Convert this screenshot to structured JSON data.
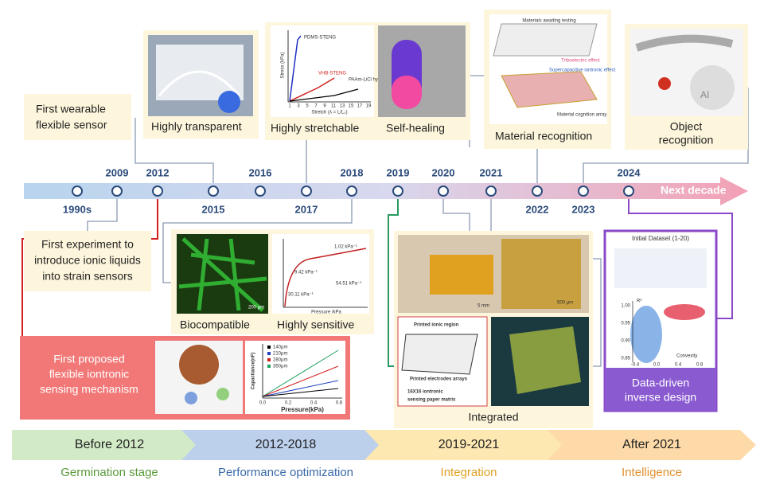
{
  "milestones": {
    "wearable": [
      "First wearable",
      "flexible sensor"
    ],
    "ionic": [
      "First experiment to",
      "introduce ionic liquids",
      "into strain sensors"
    ],
    "iontronic": [
      "First proposed",
      "flexible iontronic",
      "sensing mechanism"
    ],
    "transparent": "Highly transparent",
    "stretchable": "Highly stretchable",
    "self_healing": "Self-healing",
    "material": "Material recognition",
    "object": [
      "Object",
      "recognition"
    ],
    "biocompatible": "Biocompatible",
    "sensitive": "Highly sensitive",
    "integrated": "Integrated",
    "data_driven": [
      "Data-driven",
      "inverse design"
    ]
  },
  "timeline": {
    "years": [
      "1990s",
      "2009",
      "2012",
      "2015",
      "2016",
      "2017",
      "2018",
      "2019",
      "2020",
      "2021",
      "2022",
      "2023",
      "2024"
    ],
    "end_label": "Next decade"
  },
  "figure_texts": {
    "stretch": {
      "y_label": "Stress (kPa)",
      "x_label": "Stretch (λ = L/L₀)",
      "series": [
        "PDMS-STENG",
        "VHB-STENG",
        "PAAm-LiCl hydrogel"
      ],
      "xticks": [
        "1",
        "3",
        "5",
        "7",
        "9",
        "11",
        "13",
        "15",
        "17",
        "19"
      ]
    },
    "sensitive": {
      "slopes": [
        "1.02 kPa⁻¹",
        "9.42 kPa⁻¹",
        "30.11 kPa⁻¹",
        "54.51 kPa⁻¹"
      ],
      "x_label": "Pressure /kPa"
    },
    "capacitance": {
      "legend": [
        "140μm",
        "210μm",
        "280μm",
        "350μm"
      ],
      "y_label": "Capacitance(nF)",
      "x_label": "Pressure(kPa)",
      "xticks": [
        "0.0",
        "0.2",
        "0.4",
        "0.6"
      ]
    },
    "material": [
      "Materials awaiting testing",
      "Triboelectric effect",
      "Supercapacitive iontronic effect",
      "Material cognition array"
    ],
    "integrated": [
      "5 mm",
      "500 μm",
      "Printed ionic region",
      "Printed electrodes arrays",
      "16X16 iontronic",
      "sensing paper matrix"
    ],
    "dataset": {
      "title": "Initial Dataset (1-20)",
      "y_label": "R²",
      "x_label": "Convexity",
      "yticks": [
        "1.00",
        "0.95",
        "0.90",
        "0.85"
      ],
      "xticks": [
        "-0.4",
        "0.0",
        "0.4",
        "0.8"
      ]
    },
    "bio_scale": "200 μm",
    "ai": "AI"
  },
  "stages": [
    {
      "period": "Before 2012",
      "name": "Germination stage"
    },
    {
      "period": "2012-2018",
      "name": "Performance optimization"
    },
    {
      "period": "2019-2021",
      "name": "Integration"
    },
    {
      "period": "After 2021",
      "name": "Intelligence"
    }
  ]
}
